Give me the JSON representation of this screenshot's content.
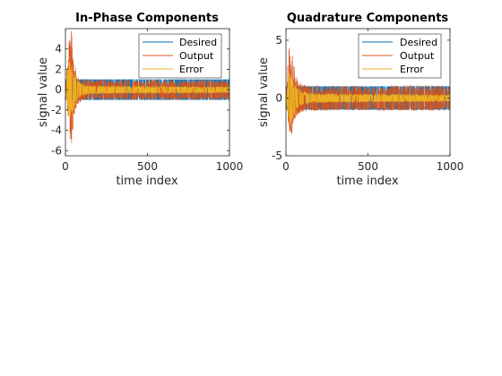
{
  "colors": {
    "desired": "#0072BD",
    "output": "#D95319",
    "error": "#EDB120",
    "axis": "#262626",
    "background": "#ffffff"
  },
  "chart_data": [
    {
      "type": "line",
      "title": "In-Phase Components",
      "xlabel": "time index",
      "ylabel": "signal value",
      "xlim": [
        0,
        1000
      ],
      "ylim": [
        -6.5,
        6
      ],
      "xticks": [
        0,
        500,
        1000
      ],
      "yticks": [
        -6,
        -4,
        -2,
        0,
        2,
        4
      ],
      "grid": false,
      "legend_position": "top-right",
      "series": [
        {
          "name": "Desired",
          "color_key": "desired",
          "envelope": {
            "x": [
              0,
              1000
            ],
            "upper": [
              1,
              1
            ],
            "lower": [
              -1,
              -1
            ]
          }
        },
        {
          "name": "Output",
          "color_key": "output",
          "envelope": {
            "x": [
              0,
              20,
              35,
              50,
              70,
              100,
              150,
              1000
            ],
            "upper": [
              0,
              5.0,
              6.0,
              3.5,
              1.6,
              1.1,
              1.0,
              1.0
            ],
            "lower": [
              0,
              -3.5,
              -6.5,
              -3.0,
              -1.6,
              -1.1,
              -1.0,
              -1.0
            ]
          }
        },
        {
          "name": "Error",
          "color_key": "error",
          "envelope": {
            "x": [
              0,
              20,
              35,
              50,
              70,
              100,
              150,
              1000
            ],
            "upper": [
              0,
              3.5,
              3.0,
              2.0,
              1.0,
              0.6,
              0.4,
              0.3
            ],
            "lower": [
              0,
              -3.0,
              -2.5,
              -2.0,
              -1.0,
              -0.6,
              -0.4,
              -0.3
            ]
          }
        }
      ]
    },
    {
      "type": "line",
      "title": "Quadrature Components",
      "xlabel": "time index",
      "ylabel": "signal value",
      "xlim": [
        0,
        1000
      ],
      "ylim": [
        -5,
        6
      ],
      "xticks": [
        0,
        500,
        1000
      ],
      "yticks": [
        -5,
        0,
        5
      ],
      "grid": false,
      "legend_position": "top-right",
      "series": [
        {
          "name": "Desired",
          "color_key": "desired",
          "envelope": {
            "x": [
              0,
              1000
            ],
            "upper": [
              1,
              1
            ],
            "lower": [
              -1,
              -1
            ]
          }
        },
        {
          "name": "Output",
          "color_key": "output",
          "envelope": {
            "x": [
              0,
              20,
              35,
              50,
              70,
              100,
              150,
              1000
            ],
            "upper": [
              0,
              5.5,
              4.0,
              3.0,
              1.6,
              1.2,
              1.1,
              1.1
            ],
            "lower": [
              0,
              -3.0,
              -3.5,
              -2.0,
              -1.5,
              -1.2,
              -1.1,
              -1.1
            ]
          }
        },
        {
          "name": "Error",
          "color_key": "error",
          "envelope": {
            "x": [
              0,
              20,
              35,
              50,
              70,
              100,
              150,
              1000
            ],
            "upper": [
              0,
              2.5,
              2.0,
              1.5,
              0.9,
              0.6,
              0.4,
              0.3
            ],
            "lower": [
              0,
              -2.5,
              -2.0,
              -1.5,
              -0.9,
              -0.6,
              -0.4,
              -0.3
            ]
          }
        }
      ]
    }
  ]
}
